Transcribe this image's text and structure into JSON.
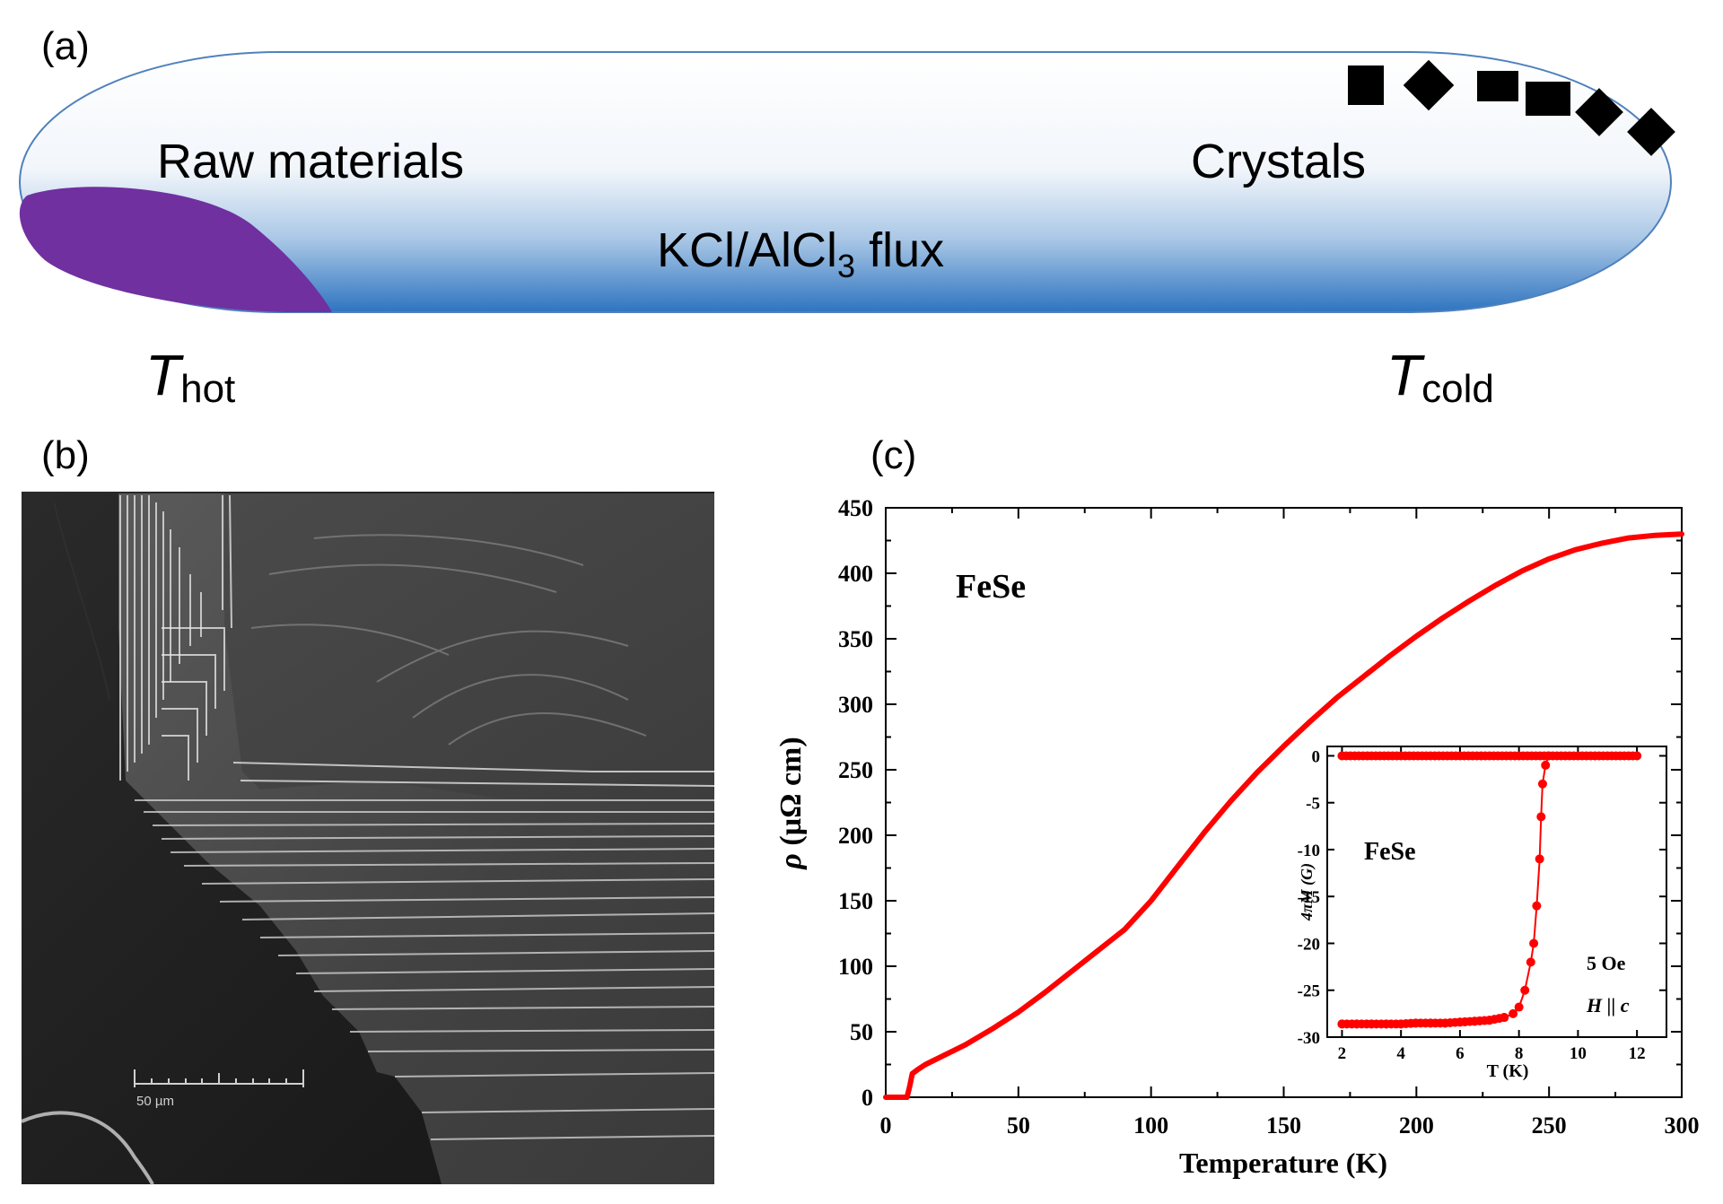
{
  "panel_a": {
    "label": "(a)",
    "raw_materials": "Raw materials",
    "crystals": "Crystals",
    "flux_main": "KCl/AlCl",
    "flux_sub": "3",
    "flux_tail": " flux",
    "t_hot_main": "T",
    "t_hot_sub": "hot",
    "t_cold_main": "T",
    "t_cold_sub": "cold",
    "colors": {
      "raw_materials": "#7030a0",
      "flux_blue": "#2e74c0",
      "tube_outline": "#4f81bd",
      "crystal": "#000000"
    }
  },
  "panel_b": {
    "label": "(b)",
    "scale_bar": "50 µm"
  },
  "panel_c": {
    "label": "(c)",
    "chart_data": [
      {
        "type": "line",
        "title": "FeSe",
        "xlabel": "Temperature (K)",
        "ylabel_symbol": "ρ",
        "ylabel_units": " (µΩ cm)",
        "xlim": [
          0,
          300
        ],
        "ylim": [
          0,
          450
        ],
        "xticks": [
          "0",
          "50",
          "100",
          "150",
          "200",
          "250",
          "300"
        ],
        "yticks": [
          "0",
          "50",
          "100",
          "150",
          "200",
          "250",
          "300",
          "350",
          "400",
          "450"
        ],
        "color": "#ff0000",
        "series": [
          {
            "x": [
              0,
              8,
              9,
              9.5,
              10,
              12,
              15,
              20,
              30,
              40,
              50,
              60,
              70,
              80,
              85,
              90,
              100,
              110,
              120,
              130,
              140,
              150,
              160,
              170,
              180,
              190,
              200,
              210,
              220,
              230,
              240,
              250,
              260,
              270,
              280,
              290,
              300
            ],
            "y": [
              0,
              0,
              8,
              13,
              18,
              21,
              25,
              30,
              40,
              52,
              65,
              80,
              96,
              112,
              120,
              128,
              150,
              176,
              202,
              226,
              248,
              268,
              287,
              305,
              321,
              337,
              352,
              366,
              379,
              391,
              402,
              411,
              418,
              423,
              427,
              429,
              430
            ]
          }
        ]
      },
      {
        "type": "scatter",
        "title": "FeSe",
        "xlabel": "T (K)",
        "ylabel": "4πM (G)",
        "xlim": [
          1.5,
          13
        ],
        "ylim": [
          -30,
          1
        ],
        "xticks": [
          "2",
          "4",
          "6",
          "8",
          "10",
          "12"
        ],
        "yticks": [
          "0",
          "-5",
          "-10",
          "-15",
          "-20",
          "-25",
          "-30"
        ],
        "annotations": [
          "5 Oe",
          "H || c"
        ],
        "color": "#ff0000",
        "series": [
          {
            "x": [
              2,
              2.5,
              3,
              3.5,
              4,
              4.5,
              5,
              5.5,
              6,
              6.5,
              7,
              7.5,
              7.8,
              8.0,
              8.2,
              8.4,
              8.5,
              8.6,
              8.7,
              8.75,
              8.8,
              8.9,
              9.0
            ],
            "y": [
              -28.6,
              -28.6,
              -28.6,
              -28.6,
              -28.6,
              -28.5,
              -28.5,
              -28.5,
              -28.4,
              -28.3,
              -28.2,
              -27.9,
              -27.5,
              -26.8,
              -25.0,
              -22.0,
              -20.0,
              -16.0,
              -11.0,
              -6.5,
              -3.0,
              -1.0,
              0
            ]
          },
          {
            "x": [
              2,
              3,
              4,
              5,
              6,
              7,
              8,
              9,
              10,
              11,
              12
            ],
            "y": [
              0,
              0,
              0,
              0,
              0,
              0,
              0,
              0,
              0,
              0,
              0
            ]
          }
        ]
      }
    ]
  }
}
